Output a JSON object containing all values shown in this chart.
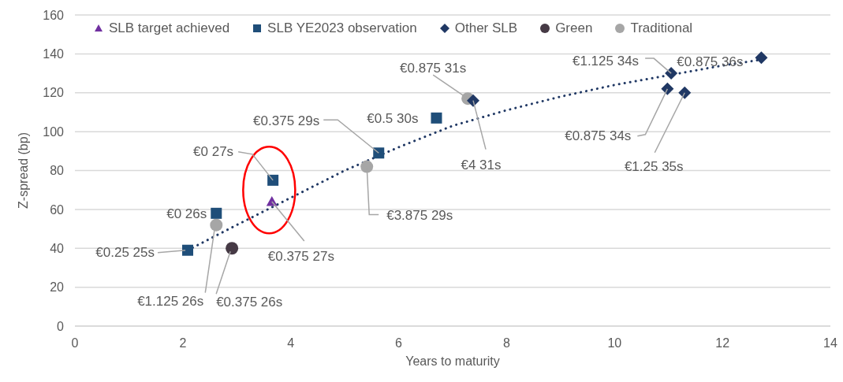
{
  "chart_data": {
    "type": "scatter",
    "xlabel": "Years to maturity",
    "ylabel": "Z-spread (bp)",
    "xlim": [
      0,
      14
    ],
    "xticks": [
      0,
      2,
      4,
      6,
      8,
      10,
      12,
      14
    ],
    "ylim": [
      0,
      160
    ],
    "yticks": [
      0,
      20,
      40,
      60,
      80,
      100,
      120,
      140,
      160
    ],
    "grid": "y",
    "legend": "top",
    "series": [
      {
        "name": "SLB target achieved",
        "color": "#7030a0",
        "marker": "triangle",
        "x": [
          3.65
        ],
        "values": [
          64
        ]
      },
      {
        "name": "SLB YE2023 observation",
        "color": "#1f4e79",
        "marker": "square",
        "x": [
          2.09,
          2.62,
          3.67,
          5.63,
          6.7
        ],
        "values": [
          39,
          58,
          75,
          89,
          107
        ]
      },
      {
        "name": "Other SLB",
        "color": "#203864",
        "marker": "diamond",
        "x": [
          7.38,
          11.05,
          10.98,
          11.3,
          12.72
        ],
        "values": [
          116,
          130,
          122,
          120,
          138
        ]
      },
      {
        "name": "Green",
        "color": "#463a45",
        "marker": "circle",
        "x": [
          2.91
        ],
        "values": [
          40
        ]
      },
      {
        "name": "Traditional",
        "color": "#a6a6a6",
        "marker": "circle",
        "x": [
          2.62,
          5.41,
          7.28
        ],
        "values": [
          52,
          82,
          117
        ]
      },
      {
        "type": "line",
        "color": "#203864",
        "line_style": "dotted",
        "marker": "none",
        "x": [
          2.09,
          3,
          4,
          5,
          6,
          7,
          8,
          9,
          10,
          11,
          12,
          12.72
        ],
        "values": [
          39,
          52,
          66,
          80,
          92,
          103,
          111,
          118,
          124,
          129,
          134,
          137
        ]
      }
    ],
    "annotations": [
      {
        "text": "€0.25 25s",
        "x": 2.09,
        "y": 39
      },
      {
        "text": "€0 26s",
        "x": 2.62,
        "y": 58
      },
      {
        "text": "€1.125 26s",
        "x": 2.62,
        "y": 52
      },
      {
        "text": "€0.375 26s",
        "x": 2.91,
        "y": 40
      },
      {
        "text": "€0 27s",
        "x": 3.67,
        "y": 75
      },
      {
        "text": "€0.375 27s",
        "x": 3.65,
        "y": 64
      },
      {
        "text": "€0.375 29s",
        "x": 5.63,
        "y": 89
      },
      {
        "text": "€0.5 30s",
        "x": 6.7,
        "y": 107
      },
      {
        "text": "€3.875 29s",
        "x": 5.41,
        "y": 82
      },
      {
        "text": "€0.875 31s",
        "x": 7.28,
        "y": 117
      },
      {
        "text": "€4 31s",
        "x": 7.38,
        "y": 116
      },
      {
        "text": "€1.125 34s",
        "x": 11.05,
        "y": 130
      },
      {
        "text": "€0.875 36s",
        "x": 12.72,
        "y": 138
      },
      {
        "text": "€0.875 34s",
        "x": 10.98,
        "y": 122
      },
      {
        "text": "€1.25 35s",
        "x": 11.3,
        "y": 120
      }
    ]
  }
}
